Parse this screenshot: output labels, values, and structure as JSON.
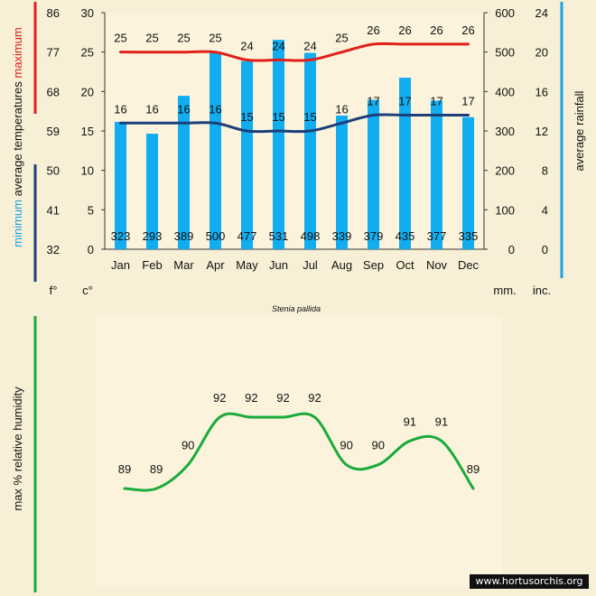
{
  "chart_data": [
    {
      "type": "bar",
      "caption": "Stenia pallida",
      "categories": [
        "Jan",
        "Feb",
        "Mar",
        "Apr",
        "May",
        "Jun",
        "Jul",
        "Aug",
        "Sep",
        "Oct",
        "Nov",
        "Dec"
      ],
      "axes": {
        "fahrenheit": {
          "unit": "f°",
          "ticks": [
            "32",
            "41",
            "50",
            "59",
            "68",
            "77",
            "86"
          ]
        },
        "celsius": {
          "unit": "c°",
          "ticks": [
            "0",
            "5",
            "10",
            "15",
            "20",
            "25",
            "30"
          ],
          "ylim": [
            0,
            30
          ]
        },
        "rainfall_mm": {
          "unit": "mm.",
          "ticks": [
            "0",
            "100",
            "200",
            "300",
            "400",
            "500",
            "600"
          ],
          "ylim": [
            0,
            600
          ]
        },
        "rainfall_inches": {
          "unit": "inc.",
          "ticks": [
            "0",
            "4",
            "8",
            "12",
            "16",
            "20",
            "24"
          ]
        }
      },
      "left_label": {
        "minimum": "minimum",
        "middle": "average temperatures",
        "maximum": "maximum"
      },
      "right_label": "average rainfall",
      "series": [
        {
          "name": "average rainfall",
          "kind": "bar",
          "axis": "rainfall_mm",
          "values": [
            323,
            293,
            389,
            500,
            477,
            531,
            498,
            339,
            379,
            435,
            377,
            335
          ],
          "labels": [
            "323",
            "293",
            "389",
            "500",
            "477",
            "531",
            "498",
            "339",
            "379",
            "435",
            "377",
            "335"
          ]
        },
        {
          "name": "maximum",
          "kind": "line",
          "axis": "celsius",
          "values": [
            25,
            25,
            25,
            25,
            24,
            24,
            24,
            25,
            26,
            26,
            26,
            26
          ],
          "labels": [
            "25",
            "25",
            "25",
            "25",
            "24",
            "24",
            "24",
            "25",
            "26",
            "26",
            "26",
            "26"
          ]
        },
        {
          "name": "minimum",
          "kind": "line",
          "axis": "celsius",
          "values": [
            16,
            16,
            16,
            16,
            15,
            15,
            15,
            16,
            17,
            17,
            17,
            17
          ],
          "labels": [
            "16",
            "16",
            "16",
            "16",
            "15",
            "15",
            "15",
            "16",
            "17",
            "17",
            "17",
            "17"
          ]
        }
      ]
    },
    {
      "type": "line",
      "ylabel": "max % relative humidity",
      "categories": [
        "Jan",
        "Feb",
        "Mar",
        "Apr",
        "May",
        "Jun",
        "Jul",
        "Aug",
        "Sep",
        "Oct",
        "Nov",
        "Dec"
      ],
      "values": [
        89,
        89,
        90,
        92,
        92,
        92,
        92,
        90,
        90,
        91,
        91,
        89
      ],
      "labels": [
        "89",
        "89",
        "90",
        "92",
        "92",
        "92",
        "92",
        "90",
        "90",
        "91",
        "91",
        "89"
      ]
    }
  ],
  "colors": {
    "bar": "#12adf0",
    "max_line": "#e1201c",
    "min_line": "#1c3f7a",
    "humidity_line": "#1aab3c",
    "right_bracket": "#1aa3e6",
    "humidity_bracket": "#1aab3c",
    "panel": "#fbf3dc"
  },
  "watermark": "www.hortusorchis.org"
}
